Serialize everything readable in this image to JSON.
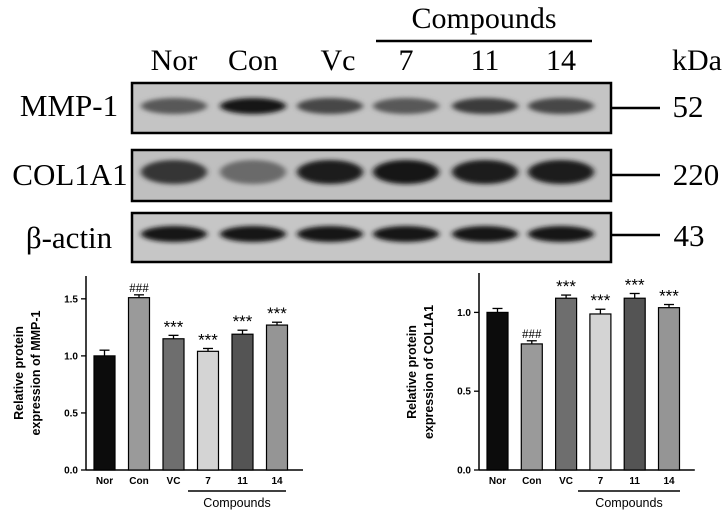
{
  "blot": {
    "group_header": "Compounds",
    "lanes": [
      "Nor",
      "Con",
      "Vc",
      "7",
      "11",
      "14"
    ],
    "unit_label": "kDa",
    "rows": [
      {
        "protein": "MMP-1",
        "kda": "52"
      },
      {
        "protein": "COL1A1",
        "kda": "220"
      },
      {
        "protein": "β-actin",
        "kda": "43"
      }
    ],
    "intensities": [
      [
        0.55,
        0.95,
        0.65,
        0.55,
        0.72,
        0.65
      ],
      [
        0.75,
        0.45,
        0.9,
        0.95,
        0.9,
        0.9
      ],
      [
        0.95,
        0.95,
        0.95,
        0.95,
        0.95,
        0.95
      ]
    ]
  },
  "chart_data": [
    {
      "type": "bar",
      "ylabel": "Relative  protein\nexpression of MMP-1",
      "xlabel": "",
      "group_label": "Compounds",
      "categories": [
        "Nor",
        "Con",
        "VC",
        "7",
        "11",
        "14"
      ],
      "values": [
        1.0,
        1.51,
        1.15,
        1.04,
        1.19,
        1.27
      ],
      "errors": [
        0.05,
        0.025,
        0.03,
        0.025,
        0.035,
        0.025
      ],
      "annotations": [
        "",
        "###",
        "***",
        "***",
        "***",
        "***"
      ],
      "yticks": [
        "0.0",
        "0.5",
        "1.0",
        "1.5"
      ],
      "ylim": [
        0,
        1.7
      ],
      "colors": [
        "#0c0c0c",
        "#9a9a9a",
        "#6e6e6e",
        "#d4d4d4",
        "#545454",
        "#959595"
      ]
    },
    {
      "type": "bar",
      "ylabel": "Relative  protein\nexpression of COL1A1",
      "xlabel": "",
      "group_label": "Compounds",
      "categories": [
        "Nor",
        "Con",
        "VC",
        "7",
        "11",
        "14"
      ],
      "values": [
        1.0,
        0.8,
        1.09,
        0.99,
        1.09,
        1.03
      ],
      "errors": [
        0.025,
        0.02,
        0.02,
        0.03,
        0.03,
        0.02
      ],
      "annotations": [
        "",
        "###",
        "***",
        "***",
        "***",
        "***"
      ],
      "yticks": [
        "0.0",
        "0.5",
        "1.0"
      ],
      "ylim": [
        0,
        1.25
      ],
      "colors": [
        "#0c0c0c",
        "#9a9a9a",
        "#6e6e6e",
        "#d4d4d4",
        "#545454",
        "#959595"
      ]
    }
  ]
}
